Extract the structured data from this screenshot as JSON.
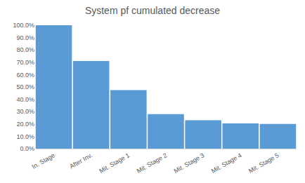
{
  "chart_data": {
    "type": "bar",
    "title": "System pf cumulated decrease",
    "categories": [
      "In. Stage",
      "After Inv.",
      "Mit. Stage 1",
      "Mit. Stage 2",
      "Mit. Stage 3",
      "Mit. Stage 4",
      "Mit. Stage 5"
    ],
    "values": [
      100,
      71,
      47.5,
      28,
      23,
      20.5,
      20
    ],
    "color": "#5b9bd5",
    "ylim": [
      0,
      100
    ],
    "yticks": [
      {
        "value": 0,
        "label": "0.0%"
      },
      {
        "value": 10,
        "label": "10.0%"
      },
      {
        "value": 20,
        "label": "20.0%"
      },
      {
        "value": 30,
        "label": "30.0%"
      },
      {
        "value": 40,
        "label": "40.0%"
      },
      {
        "value": 50,
        "label": "50.0%"
      },
      {
        "value": 60,
        "label": "60.0%"
      },
      {
        "value": 70,
        "label": "70.0%"
      },
      {
        "value": 80,
        "label": "80.0%"
      },
      {
        "value": 90,
        "label": "90.0%"
      },
      {
        "value": 100,
        "label": "100.0%"
      }
    ],
    "grid": false
  }
}
